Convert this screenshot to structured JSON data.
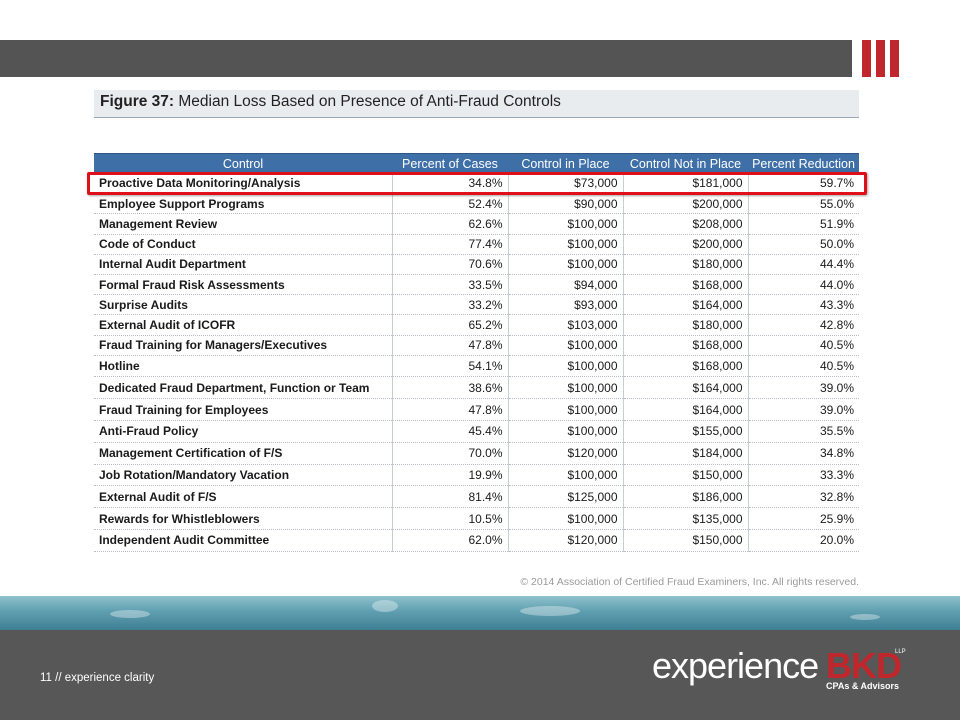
{
  "header": {
    "accent_color": "#c0272d",
    "bar_color": "#545454"
  },
  "figure": {
    "label": "Figure 37:",
    "title": "Median Loss Based on Presence of Anti-Fraud Controls",
    "columns": [
      "Control",
      "Percent of Cases",
      "Control in Place",
      "Control Not in Place",
      "Percent Reduction"
    ],
    "rows": [
      [
        "Proactive Data Monitoring/Analysis",
        "34.8%",
        "$73,000",
        "$181,000",
        "59.7%"
      ],
      [
        "Employee Support Programs",
        "52.4%",
        "$90,000",
        "$200,000",
        "55.0%"
      ],
      [
        "Management Review",
        "62.6%",
        "$100,000",
        "$208,000",
        "51.9%"
      ],
      [
        "Code of Conduct",
        "77.4%",
        "$100,000",
        "$200,000",
        "50.0%"
      ],
      [
        "Internal Audit Department",
        "70.6%",
        "$100,000",
        "$180,000",
        "44.4%"
      ],
      [
        "Formal Fraud Risk Assessments",
        "33.5%",
        "$94,000",
        "$168,000",
        "44.0%"
      ],
      [
        "Surprise Audits",
        "33.2%",
        "$93,000",
        "$164,000",
        "43.3%"
      ],
      [
        "External Audit of ICOFR",
        "65.2%",
        "$103,000",
        "$180,000",
        "42.8%"
      ],
      [
        "Fraud Training for Managers/Executives",
        "47.8%",
        "$100,000",
        "$168,000",
        "40.5%"
      ],
      [
        "Hotline",
        "54.1%",
        "$100,000",
        "$168,000",
        "40.5%"
      ],
      [
        "Dedicated Fraud Department, Function or Team",
        "38.6%",
        "$100,000",
        "$164,000",
        "39.0%"
      ],
      [
        "Fraud Training for Employees",
        "47.8%",
        "$100,000",
        "$164,000",
        "39.0%"
      ],
      [
        "Anti-Fraud Policy",
        "45.4%",
        "$100,000",
        "$155,000",
        "35.5%"
      ],
      [
        "Management Certification of F/S",
        "70.0%",
        "$120,000",
        "$184,000",
        "34.8%"
      ],
      [
        "Job Rotation/Mandatory Vacation",
        "19.9%",
        "$100,000",
        "$150,000",
        "33.3%"
      ],
      [
        "External Audit of F/S",
        "81.4%",
        "$125,000",
        "$186,000",
        "32.8%"
      ],
      [
        "Rewards for Whistleblowers",
        "10.5%",
        "$100,000",
        "$135,000",
        "25.9%"
      ],
      [
        "Independent Audit Committee",
        "62.0%",
        "$120,000",
        "$150,000",
        "20.0%"
      ]
    ],
    "highlighted_row": 0,
    "highlight_color": "#e0101a",
    "header_color": "#3f6fa7",
    "copyright": "© 2014 Association of Certified Fraud Examiners, Inc. All rights reserved."
  },
  "footer": {
    "slide_label": "11 // experience clarity",
    "logo_word": "experience",
    "logo_brand": "BKD",
    "logo_llp": "LLP",
    "logo_tagline": "CPAs & Advisors"
  }
}
